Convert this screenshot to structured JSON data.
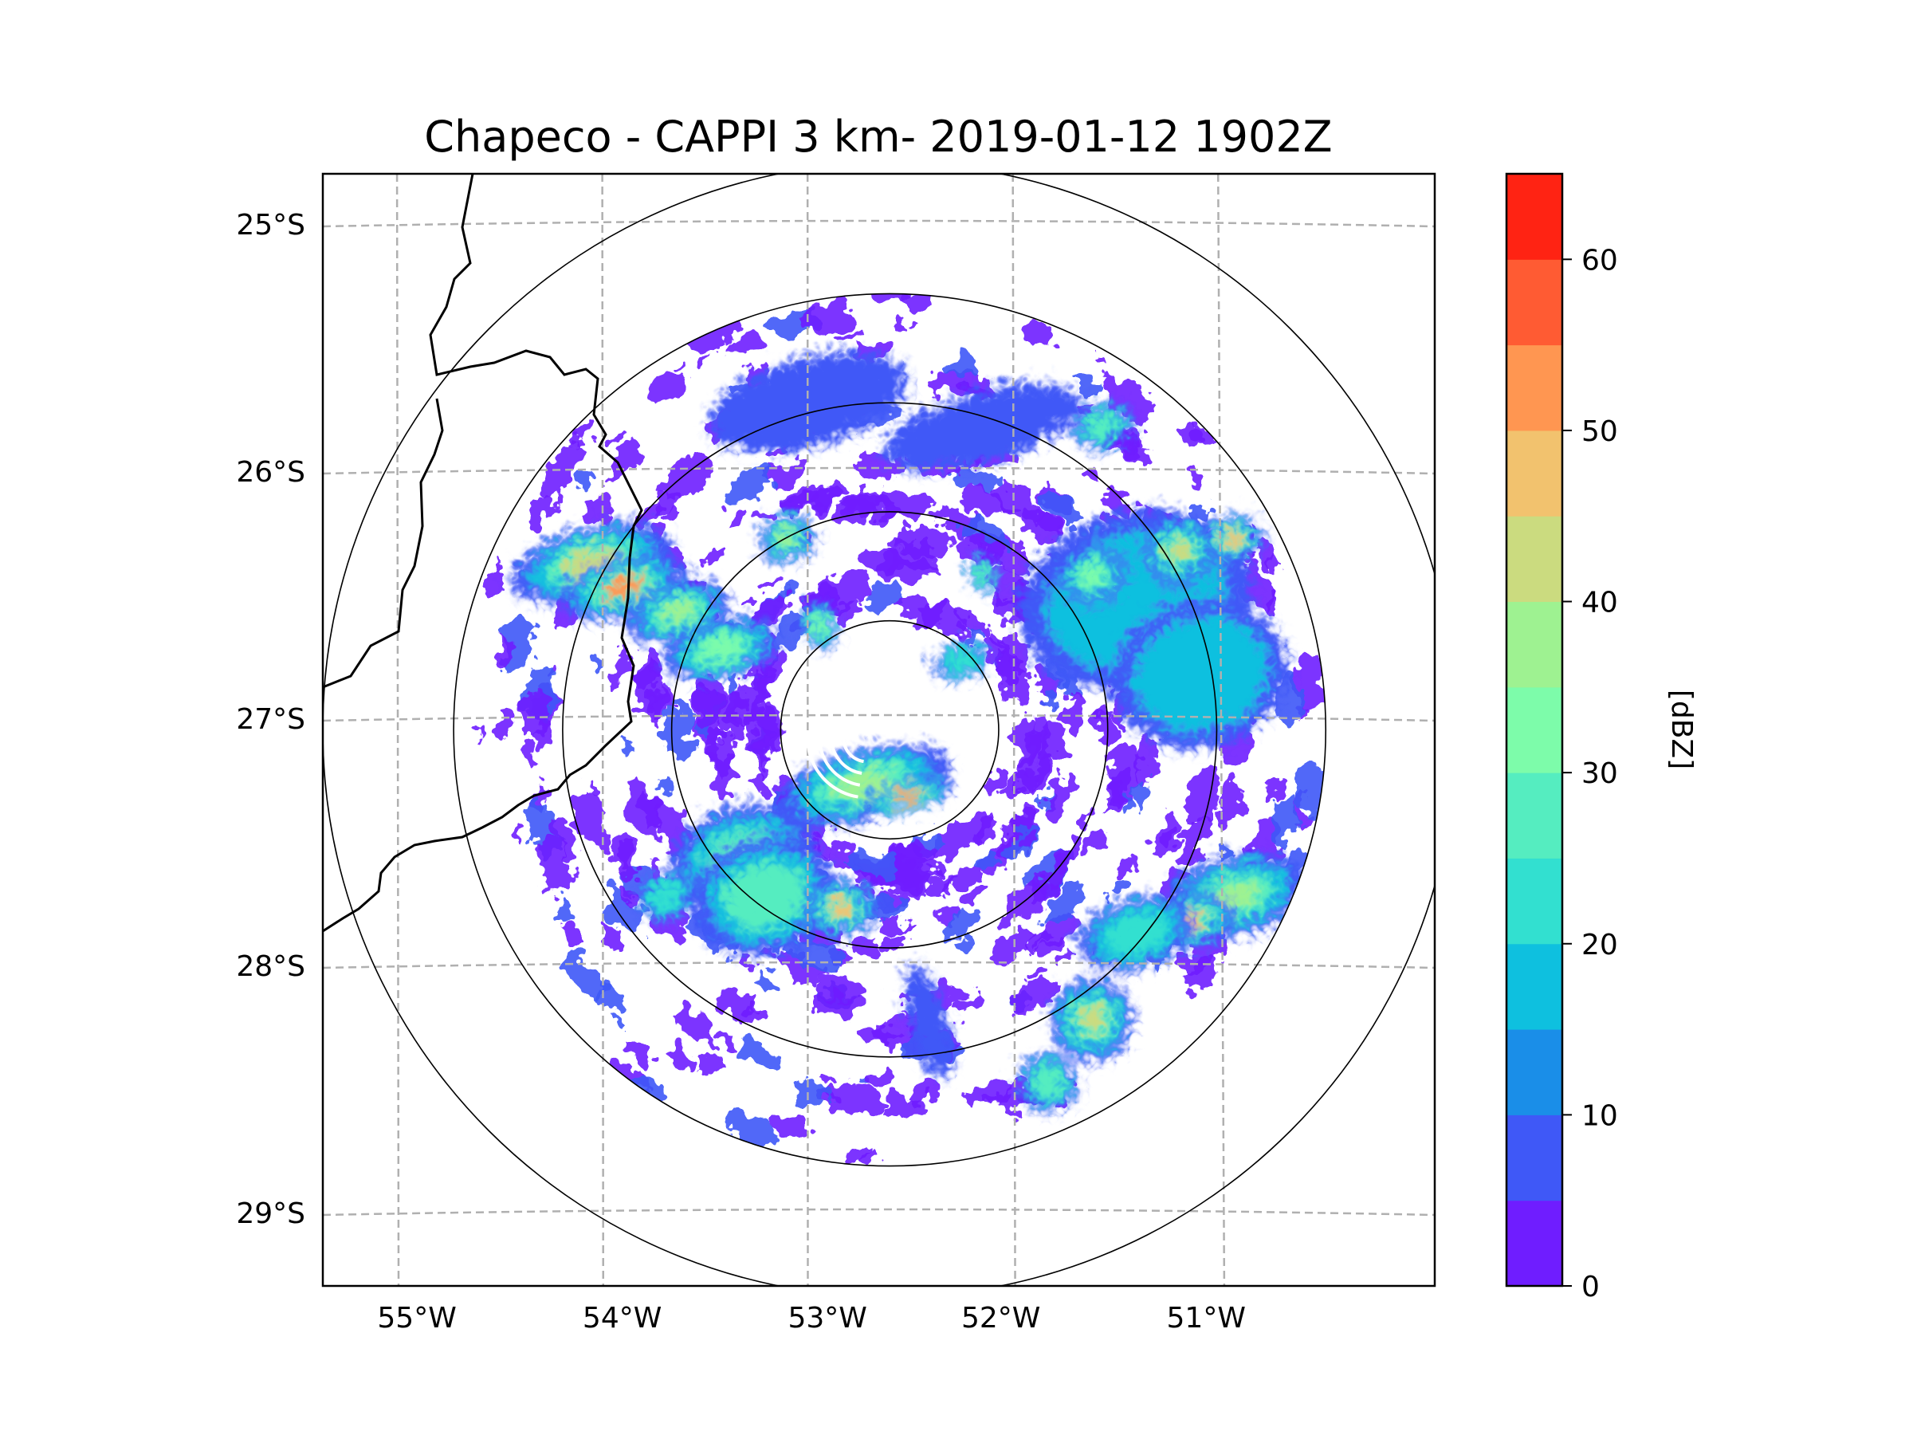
{
  "chart_data": {
    "type": "heatmap",
    "title": "Chapeco - CAPPI 3 km- 2019-01-12 1902Z",
    "xlabel": "",
    "ylabel": "",
    "radar_site": {
      "lon": -52.6,
      "lat": -27.05
    },
    "range_rings_deg": [
      0.5,
      1.0,
      1.5,
      2.0,
      2.6
    ],
    "xlim": [
      -55.2,
      -50.1
    ],
    "ylim": [
      -29.3,
      -24.8
    ],
    "grid": true,
    "lon_ticks": [
      {
        "value": -55,
        "label": "55°W"
      },
      {
        "value": -54,
        "label": "54°W"
      },
      {
        "value": -53,
        "label": "53°W"
      },
      {
        "value": -52,
        "label": "52°W"
      },
      {
        "value": -51,
        "label": "51°W"
      }
    ],
    "lat_ticks": [
      {
        "value": -25,
        "label": "25°S"
      },
      {
        "value": -26,
        "label": "26°S"
      },
      {
        "value": -27,
        "label": "27°S"
      },
      {
        "value": -28,
        "label": "28°S"
      },
      {
        "value": -29,
        "label": "29°S"
      }
    ],
    "colorbar": {
      "label": "[dBZ]",
      "min": 0,
      "max": 65,
      "ticks": [
        {
          "value": 0,
          "label": "0"
        },
        {
          "value": 10,
          "label": "10"
        },
        {
          "value": 20,
          "label": "20"
        },
        {
          "value": 30,
          "label": "30"
        },
        {
          "value": 40,
          "label": "40"
        },
        {
          "value": 50,
          "label": "50"
        },
        {
          "value": 60,
          "label": "60"
        }
      ],
      "colors": [
        "#6f1dff",
        "#3f58f7",
        "#1a8ee8",
        "#0ec0df",
        "#32e0d0",
        "#55edc0",
        "#7dfcaa",
        "#9ef291",
        "#cbdb7f",
        "#f2c26e",
        "#ff9651",
        "#ff5b33",
        "#ff2313"
      ]
    },
    "echo_cells": [
      {
        "lon": -54.0,
        "lat": -26.35,
        "rlon": 0.28,
        "rlat": 0.12,
        "dbz": 42
      },
      {
        "lon": -53.85,
        "lat": -26.45,
        "rlon": 0.22,
        "rlat": 0.1,
        "dbz": 50
      },
      {
        "lon": -53.6,
        "lat": -26.55,
        "rlon": 0.18,
        "rlat": 0.1,
        "dbz": 36
      },
      {
        "lon": -53.4,
        "lat": -26.7,
        "rlon": 0.2,
        "rlat": 0.1,
        "dbz": 30
      },
      {
        "lon": -53.1,
        "lat": -26.25,
        "rlon": 0.1,
        "rlat": 0.08,
        "dbz": 38
      },
      {
        "lon": -52.95,
        "lat": -26.6,
        "rlon": 0.06,
        "rlat": 0.08,
        "dbz": 34
      },
      {
        "lon": -52.2,
        "lat": -26.4,
        "rlon": 0.05,
        "rlat": 0.06,
        "dbz": 28
      },
      {
        "lon": -52.3,
        "lat": -26.75,
        "rlon": 0.1,
        "rlat": 0.06,
        "dbz": 22
      },
      {
        "lon": -51.5,
        "lat": -26.5,
        "rlon": 0.4,
        "rlat": 0.3,
        "dbz": 18
      },
      {
        "lon": -51.3,
        "lat": -26.3,
        "rlon": 0.12,
        "rlat": 0.12,
        "dbz": 40
      },
      {
        "lon": -51.05,
        "lat": -26.25,
        "rlon": 0.1,
        "rlat": 0.08,
        "dbz": 48
      },
      {
        "lon": -51.7,
        "lat": -26.4,
        "rlon": 0.12,
        "rlat": 0.1,
        "dbz": 32
      },
      {
        "lon": -51.2,
        "lat": -26.8,
        "rlon": 0.3,
        "rlat": 0.25,
        "dbz": 15
      },
      {
        "lon": -52.75,
        "lat": -27.25,
        "rlon": 0.3,
        "rlat": 0.12,
        "dbz": 35
      },
      {
        "lon": -52.55,
        "lat": -27.3,
        "rlon": 0.16,
        "rlat": 0.05,
        "dbz": 52
      },
      {
        "lon": -53.3,
        "lat": -27.55,
        "rlon": 0.25,
        "rlat": 0.18,
        "dbz": 32
      },
      {
        "lon": -53.2,
        "lat": -27.7,
        "rlon": 0.25,
        "rlat": 0.2,
        "dbz": 28
      },
      {
        "lon": -52.85,
        "lat": -27.75,
        "rlon": 0.12,
        "rlat": 0.1,
        "dbz": 46
      },
      {
        "lon": -53.65,
        "lat": -27.7,
        "rlon": 0.1,
        "rlat": 0.08,
        "dbz": 24
      },
      {
        "lon": -51.05,
        "lat": -27.7,
        "rlon": 0.25,
        "rlat": 0.14,
        "dbz": 38
      },
      {
        "lon": -51.25,
        "lat": -27.8,
        "rlon": 0.15,
        "rlat": 0.1,
        "dbz": 48
      },
      {
        "lon": -51.5,
        "lat": -27.85,
        "rlon": 0.2,
        "rlat": 0.12,
        "dbz": 24
      },
      {
        "lon": -51.7,
        "lat": -28.2,
        "rlon": 0.14,
        "rlat": 0.14,
        "dbz": 44
      },
      {
        "lon": -51.9,
        "lat": -28.45,
        "rlon": 0.1,
        "rlat": 0.1,
        "dbz": 26
      },
      {
        "lon": -52.45,
        "lat": -28.2,
        "rlon": 0.06,
        "rlat": 0.2,
        "dbz": 6
      },
      {
        "lon": -53.0,
        "lat": -25.7,
        "rlon": 0.35,
        "rlat": 0.15,
        "dbz": 6
      },
      {
        "lon": -52.2,
        "lat": -25.8,
        "rlon": 0.35,
        "rlat": 0.12,
        "dbz": 5
      },
      {
        "lon": -51.65,
        "lat": -25.8,
        "rlon": 0.1,
        "rlat": 0.08,
        "dbz": 25
      }
    ]
  }
}
